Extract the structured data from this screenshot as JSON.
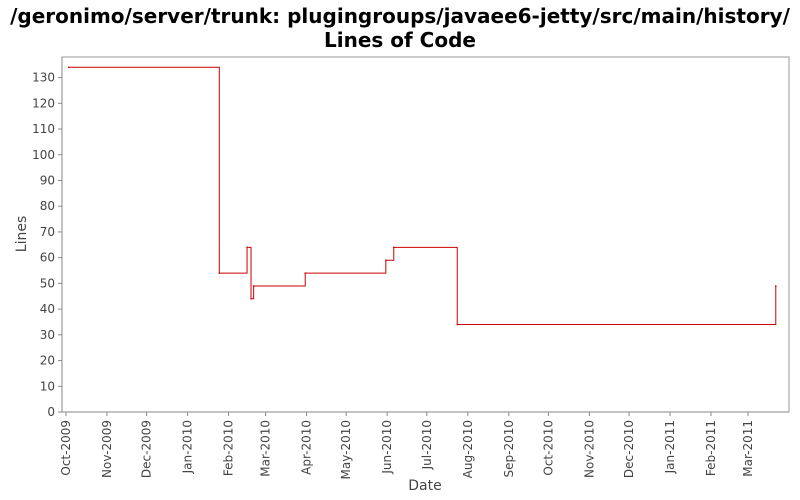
{
  "chart_data": {
    "type": "line",
    "title_line1": "/geronimo/server/trunk: plugingroups/javaee6-jetty/src/main/history/",
    "title_line2": "Lines of Code",
    "xlabel": "Date",
    "ylabel": "Lines",
    "ylim": [
      0,
      138
    ],
    "yticks": [
      0,
      10,
      20,
      30,
      40,
      50,
      60,
      70,
      80,
      90,
      100,
      110,
      120,
      130
    ],
    "xlim": [
      "2009-09-28",
      "2011-04-01"
    ],
    "xticks": [
      {
        "date": "2009-10-01",
        "label": "Oct-2009"
      },
      {
        "date": "2009-11-01",
        "label": "Nov-2009"
      },
      {
        "date": "2009-12-01",
        "label": "Dec-2009"
      },
      {
        "date": "2010-01-01",
        "label": "Jan-2010"
      },
      {
        "date": "2010-02-01",
        "label": "Feb-2010"
      },
      {
        "date": "2010-03-01",
        "label": "Mar-2010"
      },
      {
        "date": "2010-04-01",
        "label": "Apr-2010"
      },
      {
        "date": "2010-05-01",
        "label": "May-2010"
      },
      {
        "date": "2010-06-01",
        "label": "Jun-2010"
      },
      {
        "date": "2010-07-01",
        "label": "Jul-2010"
      },
      {
        "date": "2010-08-01",
        "label": "Aug-2010"
      },
      {
        "date": "2010-09-01",
        "label": "Sep-2010"
      },
      {
        "date": "2010-10-01",
        "label": "Oct-2010"
      },
      {
        "date": "2010-11-01",
        "label": "Nov-2010"
      },
      {
        "date": "2010-12-01",
        "label": "Dec-2010"
      },
      {
        "date": "2011-01-01",
        "label": "Jan-2011"
      },
      {
        "date": "2011-02-01",
        "label": "Feb-2011"
      },
      {
        "date": "2011-03-01",
        "label": "Mar-2011"
      }
    ],
    "step": true,
    "grid": false,
    "line_color": "#cc0000",
    "series": [
      {
        "x": [
          "2009-10-03",
          "2010-01-25",
          "2010-02-15",
          "2010-02-18",
          "2010-02-20",
          "2010-03-31",
          "2010-05-31",
          "2010-06-06",
          "2010-07-24",
          "2011-03-22"
        ],
        "y": [
          134,
          54,
          64,
          44,
          49,
          54,
          59,
          64,
          34,
          49
        ]
      }
    ]
  }
}
